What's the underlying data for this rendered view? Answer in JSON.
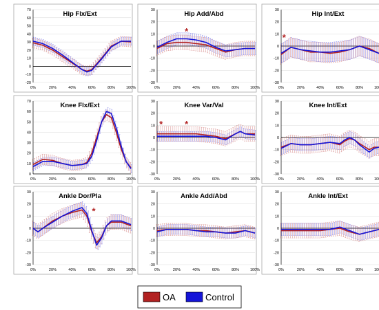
{
  "colors": {
    "oa": "#b22222",
    "control": "#1515d8",
    "star": "#b22222",
    "axis": "#000000",
    "grid": "#d9d9d9",
    "frame": "#a6a6a6"
  },
  "legend": {
    "items": [
      {
        "label": "OA",
        "color": "#b22222"
      },
      {
        "label": "Control",
        "color": "#1515d8"
      }
    ]
  },
  "x_ticks": [
    "0%",
    "20%",
    "40%",
    "60%",
    "80%",
    "100%"
  ],
  "chart_data": [
    {
      "type": "line",
      "title": "Hip Flx/Ext",
      "ylim": [
        -20,
        70
      ],
      "yticks": [
        -20,
        -10,
        0,
        10,
        20,
        30,
        40,
        50,
        60,
        70
      ],
      "x": [
        0,
        10,
        20,
        30,
        40,
        50,
        55,
        60,
        70,
        80,
        90,
        100
      ],
      "series": [
        {
          "name": "OA",
          "values": [
            29,
            26,
            20,
            12,
            4,
            -4,
            -6,
            -4,
            10,
            25,
            31,
            30
          ],
          "sd": 6
        },
        {
          "name": "Control",
          "values": [
            31,
            28,
            22,
            14,
            5,
            -4,
            -7,
            -5,
            9,
            24,
            31,
            31
          ],
          "sd": 5
        }
      ],
      "stars": []
    },
    {
      "type": "line",
      "title": "Hip Add/Abd",
      "ylim": [
        -30,
        30
      ],
      "yticks": [
        -30,
        -20,
        -10,
        0,
        10,
        20,
        30
      ],
      "x": [
        0,
        10,
        20,
        30,
        40,
        50,
        60,
        70,
        80,
        90,
        100
      ],
      "series": [
        {
          "name": "OA",
          "values": [
            -2,
            2,
            3,
            3,
            2,
            1,
            -2,
            -5,
            -3,
            -2,
            -2
          ],
          "sd": 6
        },
        {
          "name": "Control",
          "values": [
            -1,
            3,
            6,
            6,
            5,
            3,
            -1,
            -4,
            -3,
            -2,
            -2
          ],
          "sd": 5
        }
      ],
      "stars": [
        {
          "x": 30,
          "y": 13
        }
      ]
    },
    {
      "type": "line",
      "title": "Hip Int/Ext",
      "ylim": [
        -30,
        30
      ],
      "yticks": [
        -30,
        -20,
        -10,
        0,
        10,
        20,
        30
      ],
      "x": [
        0,
        10,
        20,
        30,
        40,
        50,
        60,
        70,
        80,
        90,
        100
      ],
      "series": [
        {
          "name": "OA",
          "values": [
            -7,
            -1,
            -3,
            -5,
            -5,
            -6,
            -5,
            -3,
            0,
            -2,
            -6
          ],
          "sd": 8
        },
        {
          "name": "Control",
          "values": [
            -6,
            -1,
            -3,
            -4,
            -5,
            -5,
            -4,
            -3,
            0,
            -3,
            -6
          ],
          "sd": 8
        }
      ],
      "stars": [
        {
          "x": 3,
          "y": 8
        }
      ]
    },
    {
      "type": "line",
      "title": "Knee Flx/Ext",
      "ylim": [
        0,
        70
      ],
      "yticks": [
        0,
        10,
        20,
        30,
        40,
        50,
        60,
        70
      ],
      "x": [
        0,
        10,
        20,
        30,
        40,
        50,
        55,
        60,
        65,
        70,
        75,
        80,
        85,
        90,
        95,
        100
      ],
      "series": [
        {
          "name": "OA",
          "values": [
            9,
            14,
            13,
            10,
            8,
            9,
            11,
            20,
            35,
            50,
            57,
            54,
            40,
            24,
            12,
            6
          ],
          "sd": 5
        },
        {
          "name": "Control",
          "values": [
            7,
            12,
            12,
            10,
            8,
            9,
            10,
            17,
            32,
            50,
            60,
            58,
            44,
            27,
            12,
            5
          ],
          "sd": 4
        }
      ],
      "stars": []
    },
    {
      "type": "line",
      "title": "Knee Var/Val",
      "ylim": [
        -30,
        30
      ],
      "yticks": [
        -30,
        -20,
        -10,
        0,
        10,
        20,
        30
      ],
      "x": [
        0,
        10,
        20,
        30,
        40,
        50,
        60,
        70,
        80,
        85,
        90,
        100
      ],
      "series": [
        {
          "name": "OA",
          "values": [
            3,
            3,
            3,
            3,
            3,
            2,
            1,
            -1,
            3,
            5,
            3,
            3
          ],
          "sd": 6
        },
        {
          "name": "Control",
          "values": [
            1,
            1,
            1,
            1,
            1,
            1,
            0,
            -2,
            3,
            5,
            3,
            2
          ],
          "sd": 4
        }
      ],
      "stars": [
        {
          "x": 4,
          "y": 12
        },
        {
          "x": 30,
          "y": 12
        }
      ]
    },
    {
      "type": "line",
      "title": "Knee Int/Ext",
      "ylim": [
        -30,
        30
      ],
      "yticks": [
        -30,
        -20,
        -10,
        0,
        10,
        20,
        30
      ],
      "x": [
        0,
        10,
        20,
        30,
        40,
        50,
        60,
        65,
        70,
        75,
        80,
        90,
        95,
        100
      ],
      "series": [
        {
          "name": "OA",
          "values": [
            -8,
            -5,
            -6,
            -6,
            -5,
            -4,
            -6,
            -3,
            -1,
            -2,
            -5,
            -10,
            -8,
            -8
          ],
          "sd": 7
        },
        {
          "name": "Control",
          "values": [
            -9,
            -5,
            -6,
            -6,
            -5,
            -4,
            -5,
            -2,
            0,
            -2,
            -6,
            -12,
            -9,
            -8
          ],
          "sd": 5
        }
      ],
      "stars": []
    },
    {
      "type": "line",
      "title": "Ankle Dor/Pla",
      "ylim": [
        -30,
        30
      ],
      "yticks": [
        -30,
        -20,
        -10,
        0,
        10,
        20,
        30
      ],
      "x": [
        0,
        5,
        10,
        20,
        30,
        40,
        50,
        55,
        60,
        65,
        70,
        75,
        80,
        90,
        100
      ],
      "series": [
        {
          "name": "OA",
          "values": [
            0,
            -3,
            0,
            6,
            10,
            13,
            15,
            10,
            -3,
            -12,
            -7,
            2,
            5,
            5,
            2
          ],
          "sd": 6
        },
        {
          "name": "Control",
          "values": [
            0,
            -3,
            0,
            5,
            10,
            14,
            17,
            12,
            -2,
            -14,
            -8,
            2,
            6,
            6,
            3
          ],
          "sd": 5
        }
      ],
      "stars": [
        {
          "x": 62,
          "y": 15
        }
      ]
    },
    {
      "type": "line",
      "title": "Ankle Add/Abd",
      "ylim": [
        -30,
        30
      ],
      "yticks": [
        -30,
        -20,
        -10,
        0,
        10,
        20,
        30
      ],
      "x": [
        0,
        10,
        20,
        30,
        40,
        50,
        60,
        70,
        80,
        90,
        100
      ],
      "series": [
        {
          "name": "OA",
          "values": [
            -2,
            -1,
            -1,
            -1,
            -2,
            -2,
            -3,
            -4,
            -3,
            -2,
            -4
          ],
          "sd": 5
        },
        {
          "name": "Control",
          "values": [
            -3,
            -1,
            -1,
            -1,
            -2,
            -3,
            -3,
            -4,
            -4,
            -2,
            -4
          ],
          "sd": 4
        }
      ],
      "stars": []
    },
    {
      "type": "line",
      "title": "Ankle Int/Ext",
      "ylim": [
        -30,
        30
      ],
      "yticks": [
        -30,
        -20,
        -10,
        0,
        10,
        20,
        30
      ],
      "x": [
        0,
        10,
        20,
        30,
        40,
        50,
        60,
        70,
        80,
        90,
        100
      ],
      "series": [
        {
          "name": "OA",
          "values": [
            -2,
            -2,
            -2,
            -2,
            -2,
            -1,
            0,
            -3,
            -5,
            -3,
            -1
          ],
          "sd": 6
        },
        {
          "name": "Control",
          "values": [
            -1,
            -1,
            -1,
            -1,
            -1,
            -1,
            1,
            -2,
            -5,
            -3,
            -1
          ],
          "sd": 5
        }
      ],
      "stars": []
    }
  ]
}
